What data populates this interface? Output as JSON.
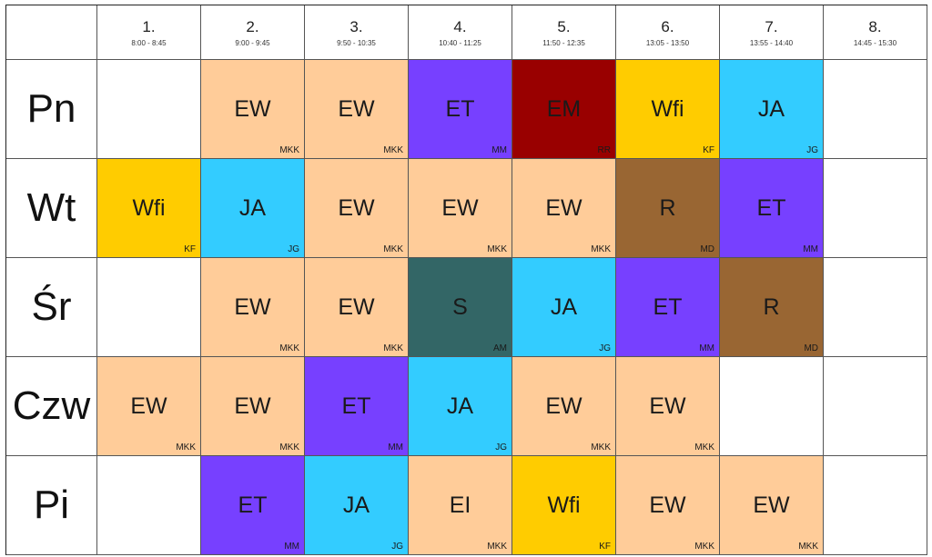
{
  "colors": {
    "EW": "#ffcc99",
    "EI": "#ffcc99",
    "ET": "#7740ff",
    "EM": "#990000",
    "Wfi": "#ffcc00",
    "JA": "#33ccff",
    "R": "#996633",
    "S": "#336666"
  },
  "periods": [
    {
      "num": "1.",
      "time": "8:00 - 8:45"
    },
    {
      "num": "2.",
      "time": "9:00 - 9:45"
    },
    {
      "num": "3.",
      "time": "9:50 - 10:35"
    },
    {
      "num": "4.",
      "time": "10:40 - 11:25"
    },
    {
      "num": "5.",
      "time": "11:50 - 12:35"
    },
    {
      "num": "6.",
      "time": "13:05 - 13:50"
    },
    {
      "num": "7.",
      "time": "13:55 - 14:40"
    },
    {
      "num": "8.",
      "time": "14:45 - 15:30"
    }
  ],
  "days": [
    {
      "label": "Pn",
      "cells": [
        null,
        {
          "subject": "EW",
          "teacher": "MKK"
        },
        {
          "subject": "EW",
          "teacher": "MKK"
        },
        {
          "subject": "ET",
          "teacher": "MM"
        },
        {
          "subject": "EM",
          "teacher": "RR"
        },
        {
          "subject": "Wfi",
          "teacher": "KF"
        },
        {
          "subject": "JA",
          "teacher": "JG"
        },
        null
      ]
    },
    {
      "label": "Wt",
      "cells": [
        {
          "subject": "Wfi",
          "teacher": "KF"
        },
        {
          "subject": "JA",
          "teacher": "JG"
        },
        {
          "subject": "EW",
          "teacher": "MKK"
        },
        {
          "subject": "EW",
          "teacher": "MKK"
        },
        {
          "subject": "EW",
          "teacher": "MKK"
        },
        {
          "subject": "R",
          "teacher": "MD"
        },
        {
          "subject": "ET",
          "teacher": "MM"
        },
        null
      ]
    },
    {
      "label": "Śr",
      "cells": [
        null,
        {
          "subject": "EW",
          "teacher": "MKK"
        },
        {
          "subject": "EW",
          "teacher": "MKK"
        },
        {
          "subject": "S",
          "teacher": "AM"
        },
        {
          "subject": "JA",
          "teacher": "JG"
        },
        {
          "subject": "ET",
          "teacher": "MM"
        },
        {
          "subject": "R",
          "teacher": "MD"
        },
        null
      ]
    },
    {
      "label": "Czw",
      "cells": [
        {
          "subject": "EW",
          "teacher": "MKK"
        },
        {
          "subject": "EW",
          "teacher": "MKK"
        },
        {
          "subject": "ET",
          "teacher": "MM"
        },
        {
          "subject": "JA",
          "teacher": "JG"
        },
        {
          "subject": "EW",
          "teacher": "MKK"
        },
        {
          "subject": "EW",
          "teacher": "MKK"
        },
        null,
        null
      ]
    },
    {
      "label": "Pi",
      "cells": [
        null,
        {
          "subject": "ET",
          "teacher": "MM"
        },
        {
          "subject": "JA",
          "teacher": "JG"
        },
        {
          "subject": "EI",
          "teacher": "MKK"
        },
        {
          "subject": "Wfi",
          "teacher": "KF"
        },
        {
          "subject": "EW",
          "teacher": "MKK"
        },
        {
          "subject": "EW",
          "teacher": "MKK"
        },
        null
      ]
    }
  ]
}
